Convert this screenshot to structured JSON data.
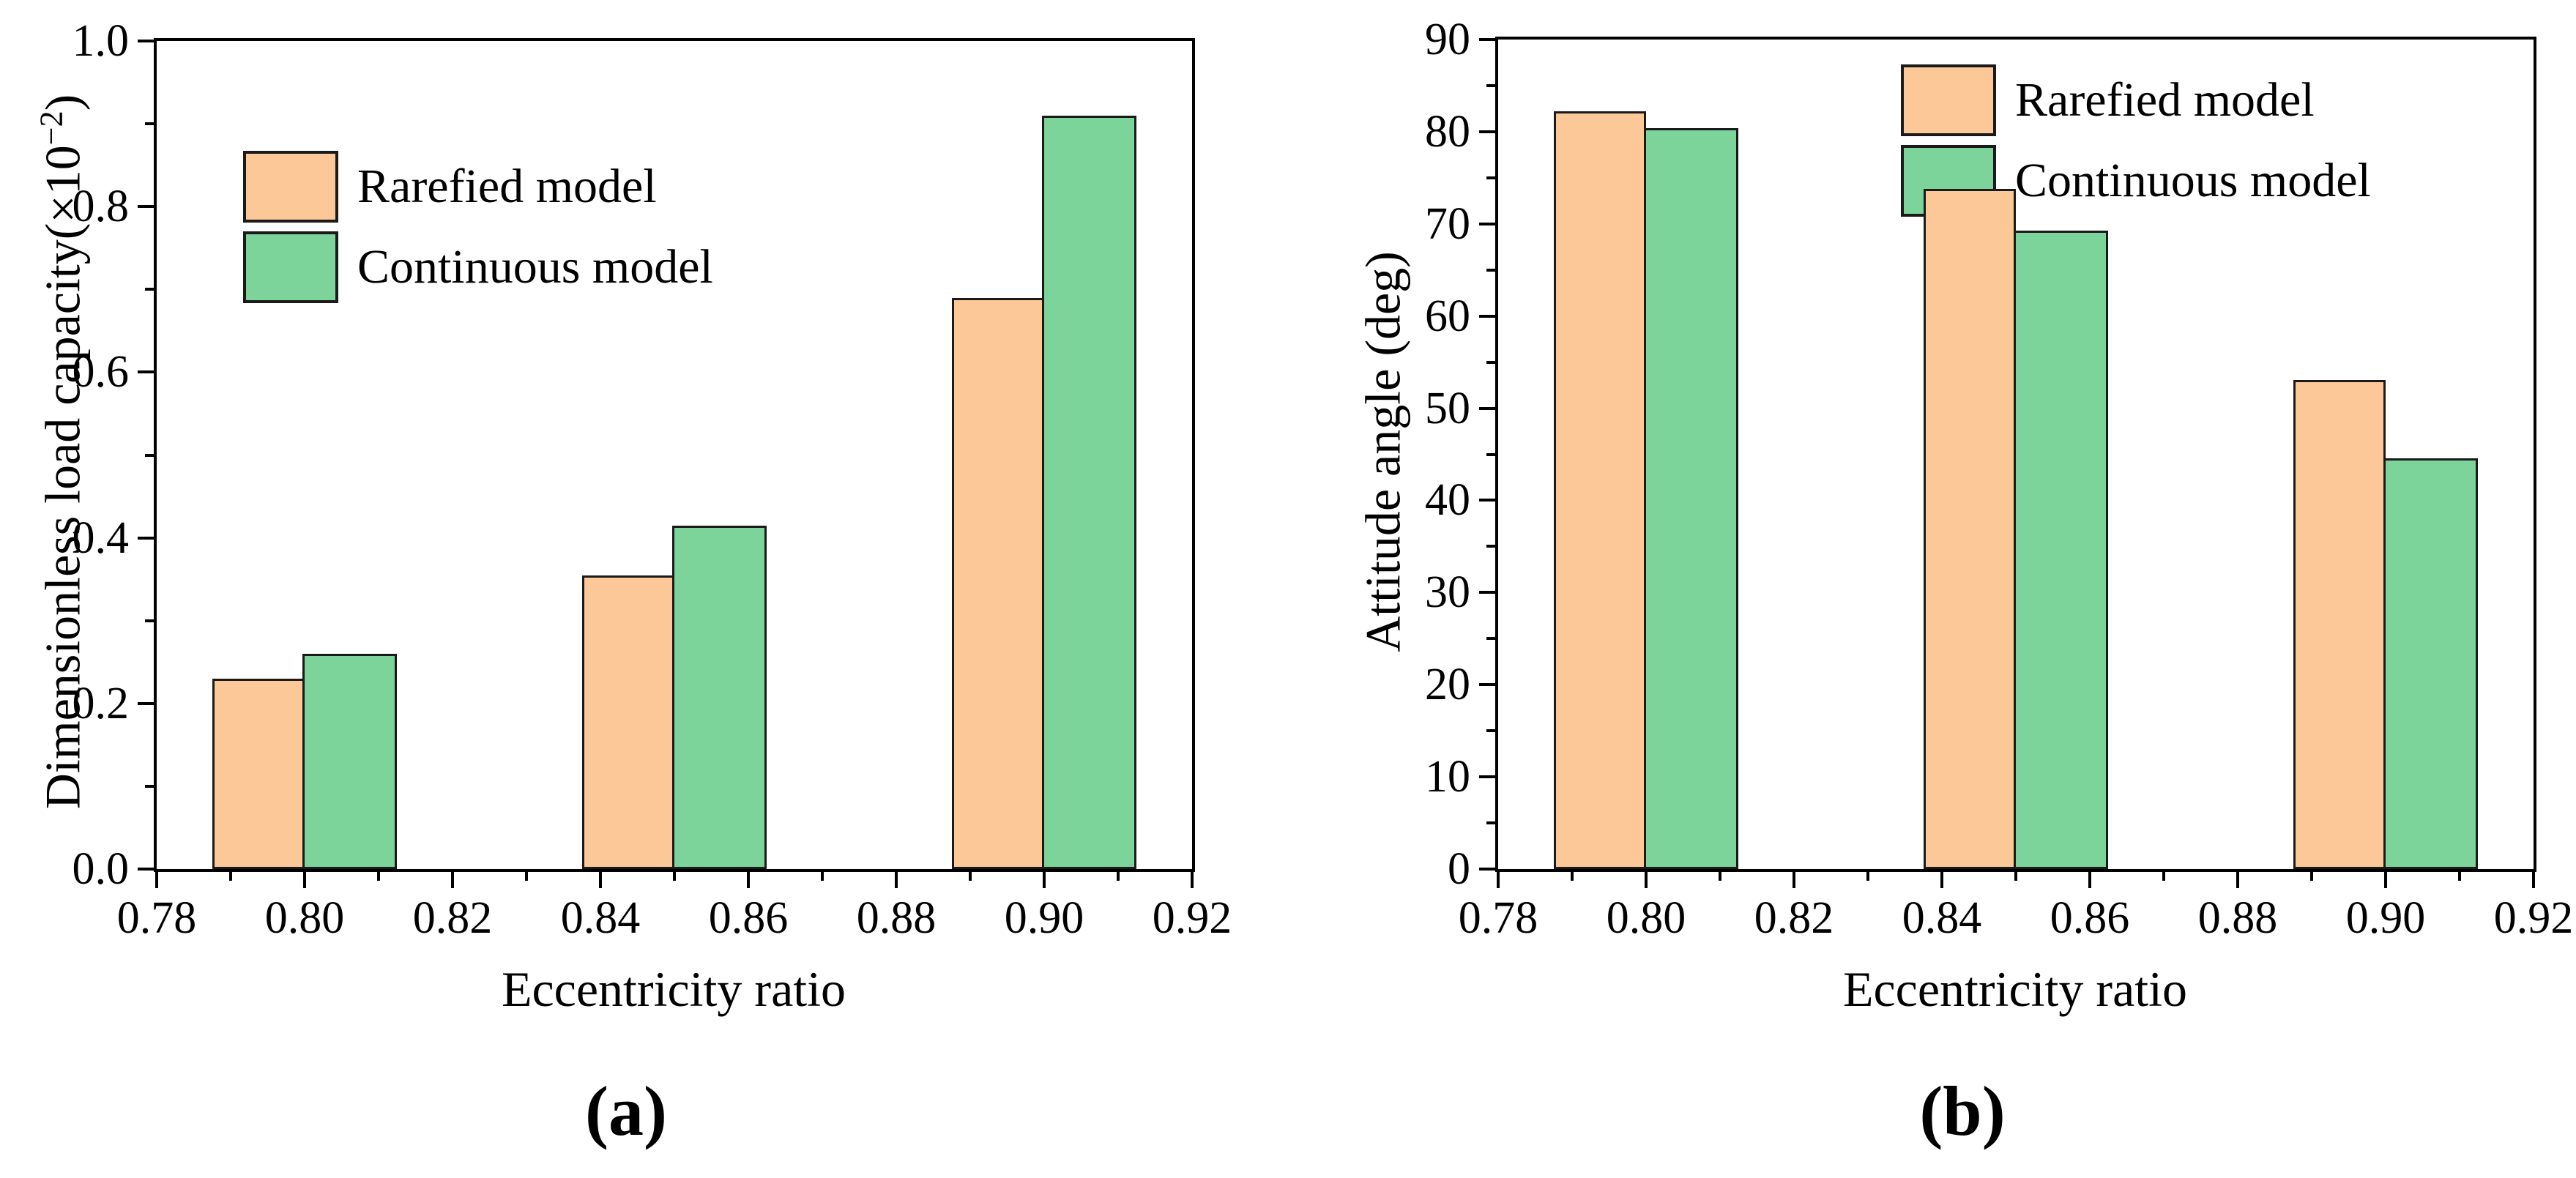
{
  "figure": {
    "panels": [
      {
        "caption": "(a)",
        "xlabel": "Eccentricity ratio",
        "ylabel": {
          "pre": "Dimensionless load capacity(×10",
          "sup": "−2",
          "post": ")"
        }
      },
      {
        "caption": "(b)",
        "xlabel": "Eccentricity ratio",
        "ylabel": {
          "pre": "Attitude angle (deg)",
          "sup": "",
          "post": ""
        }
      }
    ]
  },
  "chart_data": [
    {
      "type": "bar",
      "title": "",
      "xlabel": "Eccentricity ratio",
      "ylabel": "Dimensionless load capacity(×10^−2)",
      "categories": [
        0.8,
        0.85,
        0.9
      ],
      "series": [
        {
          "name": "Rarefied model",
          "color": "#FDC897",
          "values": [
            0.23,
            0.355,
            0.69
          ]
        },
        {
          "name": "Continuous model",
          "color": "#7CD49A",
          "values": [
            0.26,
            0.415,
            0.91
          ]
        }
      ],
      "xlim": [
        0.78,
        0.92
      ],
      "ylim": [
        0.0,
        1.0
      ],
      "x_major_step": 0.02,
      "x_minor_step": 0.01,
      "y_major_step": 0.2,
      "y_minor_step": 0.1,
      "x_decimals": 2,
      "y_decimals": 1,
      "bar_width": 0.0125,
      "edge_color": "#1a1a1a",
      "grid": false,
      "legend_position": "upper-left"
    },
    {
      "type": "bar",
      "title": "",
      "xlabel": "Eccentricity ratio",
      "ylabel": "Attitude angle (deg)",
      "categories": [
        0.8,
        0.85,
        0.9
      ],
      "series": [
        {
          "name": "Rarefied model",
          "color": "#FDC897",
          "values": [
            82.2,
            73.8,
            53.1
          ]
        },
        {
          "name": "Continuous model",
          "color": "#7CD49A",
          "values": [
            80.4,
            69.3,
            44.6
          ]
        }
      ],
      "xlim": [
        0.78,
        0.92
      ],
      "ylim": [
        0,
        90
      ],
      "x_major_step": 0.02,
      "x_minor_step": 0.01,
      "y_major_step": 10,
      "y_minor_step": 5,
      "x_decimals": 2,
      "y_decimals": 0,
      "bar_width": 0.0125,
      "edge_color": "#1a1a1a",
      "grid": false,
      "legend_position": "upper-center"
    }
  ]
}
